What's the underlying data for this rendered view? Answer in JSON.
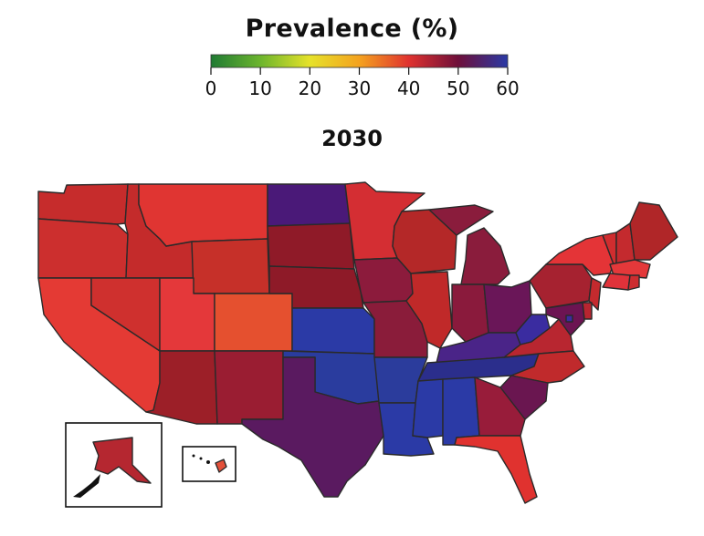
{
  "legend": {
    "title": "Prevalence (%)",
    "ticks": [
      "0",
      "10",
      "20",
      "30",
      "40",
      "50",
      "60"
    ],
    "min": 0,
    "max": 60,
    "gradient_stops": [
      {
        "value": 0,
        "color": "#1f7a33"
      },
      {
        "value": 10,
        "color": "#6cb52d"
      },
      {
        "value": 20,
        "color": "#e6e22a"
      },
      {
        "value": 30,
        "color": "#f4a21f"
      },
      {
        "value": 40,
        "color": "#e0322f"
      },
      {
        "value": 50,
        "color": "#6e0f3a"
      },
      {
        "value": 60,
        "color": "#2a3aa6"
      }
    ]
  },
  "year": "2030",
  "colors": {
    "CA": "#e43a34",
    "WA": "#c62c2c",
    "OR": "#cc2f2e",
    "ID": "#c42b2b",
    "NV": "#cf302e",
    "MT": "#e03532",
    "WY": "#c63029",
    "UT": "#e4383a",
    "AZ": "#9c1f28",
    "CO": "#e5502f",
    "NM": "#9a1d32",
    "ND": "#4a1978",
    "SD": "#8f1a28",
    "NE": "#8e1a28",
    "KS": "#2b3aa6",
    "OK": "#2a3c9e",
    "TX": "#5a1a60",
    "MN": "#d42e33",
    "IA": "#8c1b3c",
    "MO": "#8a1c3a",
    "AR": "#2b3c9c",
    "LA": "#2b3aa6",
    "WI": "#b42828",
    "IL": "#c02929",
    "MI": "#8a1c3c",
    "IN": "#8a1a3c",
    "OH": "#6a1658",
    "KY": "#4a2488",
    "TN": "#2b2e8c",
    "MS": "#2b3aa6",
    "AL": "#2b3aa6",
    "WV": "#3a2ca0",
    "VA": "#b82630",
    "NC": "#c02a2c",
    "SC": "#6a1650",
    "GA": "#981c3a",
    "FL": "#e0322f",
    "PA": "#a62230",
    "NY": "#e43437",
    "NJ": "#c42a2e",
    "MD": "#6c1452",
    "DE": "#b82530",
    "VT": "#d02d2f",
    "NH": "#c42a2e",
    "ME": "#b02628",
    "MA": "#e4383a",
    "CT": "#e0323a",
    "RI": "#cc2d30",
    "DC": "#3a2ca0",
    "AK": "#b52730",
    "HI": "#e4503a"
  }
}
